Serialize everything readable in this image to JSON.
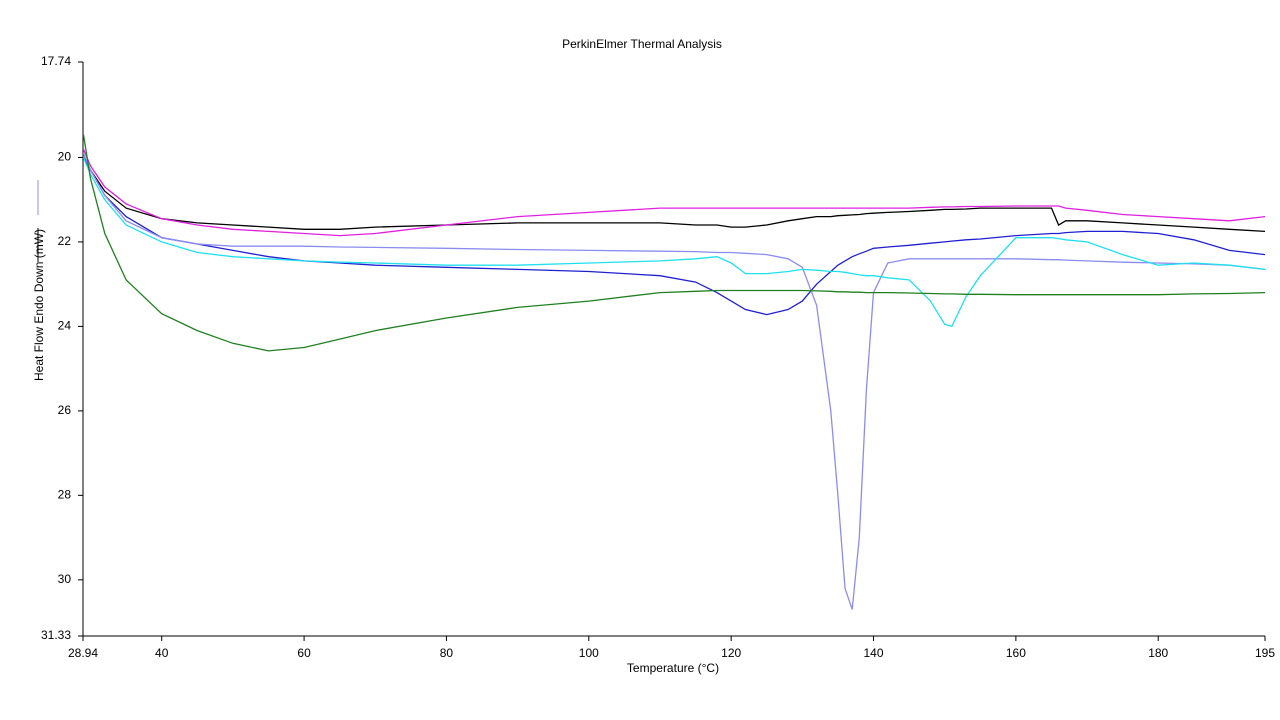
{
  "chart_data": {
    "type": "line",
    "title": "PerkinElmer Thermal Analysis",
    "x_label": "Temperature (°C)",
    "y_label": "Heat Flow Endo Down (mW)",
    "xlim": [
      28.94,
      195
    ],
    "xticks": [
      28.94,
      40,
      60,
      80,
      100,
      120,
      140,
      160,
      180,
      195
    ],
    "ylim": [
      17.74,
      31.33
    ],
    "y_inverted": true,
    "yticks": [
      17.74,
      20,
      22,
      24,
      26,
      28,
      30,
      31.33
    ],
    "grid": false,
    "x": [
      29,
      30,
      32,
      35,
      40,
      45,
      50,
      55,
      60,
      65,
      70,
      80,
      90,
      100,
      110,
      115,
      118,
      120,
      122,
      125,
      128,
      130,
      132,
      134,
      135,
      136,
      137,
      138,
      139,
      140,
      142,
      145,
      148,
      150,
      151,
      153,
      155,
      160,
      165,
      166,
      167,
      170,
      175,
      180,
      185,
      190,
      195
    ],
    "series": [
      {
        "color": "#000000",
        "values": [
          20.0,
          20.3,
          20.8,
          21.2,
          21.45,
          21.55,
          21.6,
          21.65,
          21.7,
          21.7,
          21.65,
          21.6,
          21.55,
          21.55,
          21.55,
          21.6,
          21.6,
          21.65,
          21.65,
          21.6,
          21.5,
          21.45,
          21.4,
          21.4,
          21.38,
          21.37,
          21.36,
          21.35,
          21.33,
          21.32,
          21.3,
          21.28,
          21.25,
          21.23,
          21.23,
          21.22,
          21.2,
          21.2,
          21.2,
          21.6,
          21.5,
          21.5,
          21.55,
          21.6,
          21.65,
          21.7,
          21.75
        ]
      },
      {
        "color": "#e020e0",
        "values": [
          19.8,
          20.2,
          20.7,
          21.1,
          21.45,
          21.6,
          21.7,
          21.75,
          21.8,
          21.85,
          21.8,
          21.6,
          21.4,
          21.3,
          21.2,
          21.2,
          21.2,
          21.2,
          21.2,
          21.2,
          21.2,
          21.2,
          21.2,
          21.2,
          21.2,
          21.2,
          21.2,
          21.2,
          21.2,
          21.2,
          21.2,
          21.2,
          21.18,
          21.17,
          21.17,
          21.16,
          21.16,
          21.15,
          21.15,
          21.15,
          21.2,
          21.25,
          21.35,
          21.4,
          21.45,
          21.5,
          21.4
        ]
      },
      {
        "color": "#2020d0",
        "values": [
          20.0,
          20.3,
          20.9,
          21.4,
          21.9,
          22.05,
          22.2,
          22.35,
          22.45,
          22.5,
          22.55,
          22.6,
          22.65,
          22.7,
          22.8,
          22.95,
          23.2,
          23.4,
          23.6,
          23.72,
          23.6,
          23.4,
          23.0,
          22.7,
          22.55,
          22.45,
          22.35,
          22.28,
          22.22,
          22.15,
          22.12,
          22.08,
          22.03,
          22.0,
          21.98,
          21.95,
          21.93,
          21.85,
          21.8,
          21.8,
          21.78,
          21.75,
          21.75,
          21.8,
          21.95,
          22.2,
          22.3
        ]
      },
      {
        "color": "#8c8cf0",
        "values": [
          19.9,
          20.3,
          20.9,
          21.5,
          21.9,
          22.05,
          22.1,
          22.1,
          22.1,
          22.12,
          22.13,
          22.15,
          22.18,
          22.2,
          22.22,
          22.23,
          22.25,
          22.25,
          22.27,
          22.3,
          22.4,
          22.6,
          23.5,
          26.0,
          28.0,
          30.2,
          30.7,
          29.0,
          25.5,
          23.2,
          22.5,
          22.4,
          22.4,
          22.4,
          22.4,
          22.4,
          22.4,
          22.4,
          22.42,
          22.42,
          22.43,
          22.45,
          22.48,
          22.5,
          22.52,
          22.55,
          22.65
        ]
      },
      {
        "color": "#20e0f0",
        "values": [
          20.0,
          20.4,
          21.0,
          21.6,
          22.0,
          22.25,
          22.35,
          22.4,
          22.45,
          22.48,
          22.5,
          22.55,
          22.55,
          22.5,
          22.45,
          22.4,
          22.35,
          22.5,
          22.75,
          22.75,
          22.7,
          22.65,
          22.67,
          22.7,
          22.7,
          22.72,
          22.75,
          22.78,
          22.8,
          22.8,
          22.85,
          22.9,
          23.4,
          23.95,
          24.0,
          23.3,
          22.8,
          21.9,
          21.9,
          21.92,
          21.95,
          22.0,
          22.3,
          22.55,
          22.5,
          22.55,
          22.65
        ]
      },
      {
        "color": "#208020",
        "values": [
          19.45,
          20.5,
          21.8,
          22.9,
          23.7,
          24.1,
          24.4,
          24.58,
          24.5,
          24.3,
          24.1,
          23.8,
          23.55,
          23.4,
          23.2,
          23.17,
          23.15,
          23.15,
          23.15,
          23.15,
          23.15,
          23.15,
          23.16,
          23.17,
          23.18,
          23.18,
          23.19,
          23.19,
          23.2,
          23.2,
          23.2,
          23.21,
          23.22,
          23.23,
          23.23,
          23.24,
          23.24,
          23.25,
          23.25,
          23.25,
          23.25,
          23.25,
          23.25,
          23.25,
          23.23,
          23.22,
          23.2
        ]
      }
    ]
  }
}
